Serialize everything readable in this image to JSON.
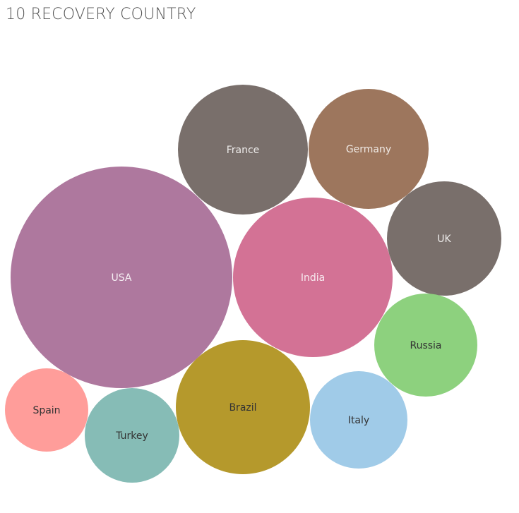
{
  "chart_data": {
    "type": "bubble",
    "title": "10 RECOVERY COUNTRY",
    "series": [
      {
        "name": "USA",
        "color": "#AE789E",
        "label_color": "#F5EEF3"
      },
      {
        "name": "India",
        "color": "#D37295",
        "label_color": "#F7EAEF"
      },
      {
        "name": "France",
        "color": "#796F6B",
        "label_color": "#EDEBEA"
      },
      {
        "name": "Germany",
        "color": "#9D765D",
        "label_color": "#EFE9E4"
      },
      {
        "name": "UK",
        "color": "#796F6B",
        "label_color": "#EDEBEA"
      },
      {
        "name": "Brazil",
        "color": "#B5992C",
        "label_color": "#333333"
      },
      {
        "name": "Russia",
        "color": "#8DD17E",
        "label_color": "#333333"
      },
      {
        "name": "Italy",
        "color": "#A0CBE8",
        "label_color": "#333333"
      },
      {
        "name": "Turkey",
        "color": "#86BCB6",
        "label_color": "#333333"
      },
      {
        "name": "Spain",
        "color": "#FF9D9A",
        "label_color": "#333333"
      }
    ]
  }
}
